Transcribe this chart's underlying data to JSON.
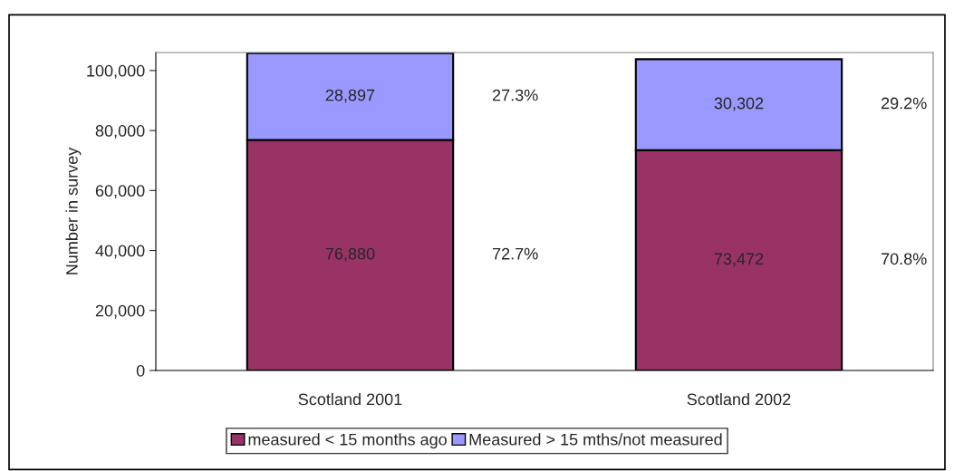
{
  "chart_data": {
    "type": "bar",
    "stacked": true,
    "ylabel": "Number in survey",
    "categories": [
      "Scotland 2001",
      "Scotland 2002"
    ],
    "series": [
      {
        "name": "measured < 15 months ago",
        "color": "#993366",
        "values": [
          76880,
          73472
        ],
        "value_labels": [
          "76,880",
          "73,472"
        ]
      },
      {
        "name": "Measured > 15 mths/not measured",
        "color": "#9999ff",
        "values": [
          28897,
          30302
        ],
        "value_labels": [
          "28,897",
          "30,302"
        ]
      }
    ],
    "annotations": [
      "27.3%",
      "72.7%",
      "29.2%",
      "70.8%"
    ],
    "ylim": [
      0,
      106000
    ],
    "yticks": [
      {
        "value": 0,
        "label": "0"
      },
      {
        "value": 20000,
        "label": "20,000"
      },
      {
        "value": 40000,
        "label": "40,000"
      },
      {
        "value": 60000,
        "label": "60,000"
      },
      {
        "value": 80000,
        "label": "80,000"
      },
      {
        "value": 100000,
        "label": "100,000"
      }
    ],
    "grid": false,
    "legend": "bottom"
  }
}
